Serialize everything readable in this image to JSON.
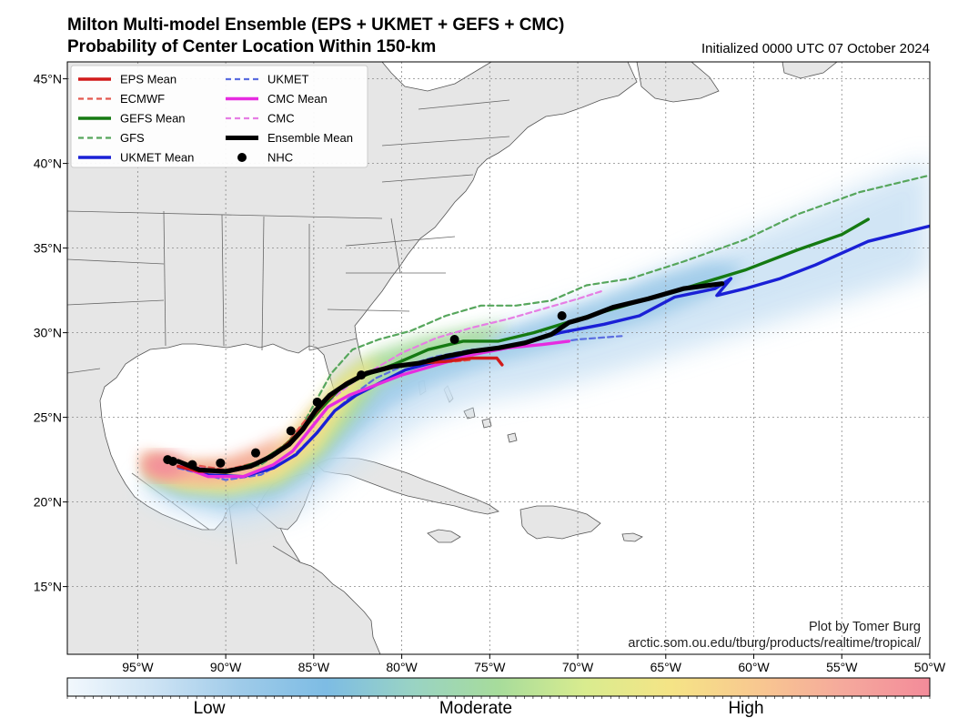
{
  "title": {
    "line1": "Milton Multi-model Ensemble (EPS + UKMET + GEFS + CMC)",
    "line2": "Probability of Center Location Within 150-km",
    "initialized": "Initialized 0000 UTC 07 October 2024"
  },
  "credit": {
    "line1": "Plot by Tomer Burg",
    "line2": "arctic.som.ou.edu/tburg/products/realtime/tropical/"
  },
  "axes": {
    "lat_labels": [
      "15°N",
      "20°N",
      "25°N",
      "30°N",
      "35°N",
      "40°N",
      "45°N"
    ],
    "lon_labels": [
      "95°W",
      "90°W",
      "85°W",
      "80°W",
      "75°W",
      "70°W",
      "65°W",
      "60°W",
      "55°W",
      "50°W"
    ],
    "lat_values": [
      15,
      20,
      25,
      30,
      35,
      40,
      45
    ],
    "lon_values": [
      -95,
      -90,
      -85,
      -80,
      -75,
      -70,
      -65,
      -60,
      -55,
      -50
    ],
    "lon_range": [
      -99,
      -50
    ],
    "lat_range": [
      11,
      46
    ]
  },
  "colorbar": {
    "labels": [
      "Low",
      "Moderate",
      "High"
    ],
    "colors": [
      "#f2f8fd",
      "#cde3f4",
      "#9fcbe9",
      "#7dbce4",
      "#99d3c4",
      "#a7dc9b",
      "#d9ec8f",
      "#f5e486",
      "#f8c890",
      "#f5a99c",
      "#f38b9a"
    ]
  },
  "legend": {
    "items": [
      {
        "label": "EPS Mean",
        "color": "#d11a1a",
        "style": "solid-thick"
      },
      {
        "label": "ECMWF",
        "color": "#e4584f",
        "style": "dashed"
      },
      {
        "label": "GEFS Mean",
        "color": "#157a12",
        "style": "solid-thick"
      },
      {
        "label": "GFS",
        "color": "#56a65c",
        "style": "dashed"
      },
      {
        "label": "UKMET Mean",
        "color": "#1a20d6",
        "style": "solid-thick"
      },
      {
        "label": "UKMET",
        "color": "#5a6de0",
        "style": "dashed"
      },
      {
        "label": "CMC Mean",
        "color": "#e62ce0",
        "style": "solid-thick"
      },
      {
        "label": "CMC",
        "color": "#e67ee4",
        "style": "dashed"
      },
      {
        "label": "Ensemble Mean",
        "color": "#000000",
        "style": "solid-heavy"
      },
      {
        "label": "NHC",
        "color": "#000000",
        "style": "dot"
      }
    ]
  },
  "tracks": {
    "eps_mean": [
      [
        -92.7,
        22.1
      ],
      [
        -91.5,
        21.8
      ],
      [
        -90,
        21.8
      ],
      [
        -88.5,
        22.1
      ],
      [
        -87.2,
        22.8
      ],
      [
        -86.2,
        23.7
      ],
      [
        -85.2,
        24.9
      ],
      [
        -84.3,
        26.0
      ],
      [
        -83.2,
        27.0
      ],
      [
        -82,
        27.6
      ],
      [
        -80.5,
        28.0
      ],
      [
        -79,
        28.2
      ],
      [
        -77.5,
        28.3
      ],
      [
        -76,
        28.5
      ],
      [
        -74.6,
        28.5
      ],
      [
        -74.3,
        28.1
      ]
    ],
    "gefs_mean": [
      [
        -92.7,
        22.1
      ],
      [
        -91,
        21.8
      ],
      [
        -89.5,
        21.9
      ],
      [
        -88,
        22.4
      ],
      [
        -86.8,
        23.2
      ],
      [
        -85.6,
        24.3
      ],
      [
        -84.6,
        25.5
      ],
      [
        -83.6,
        26.6
      ],
      [
        -82.3,
        27.4
      ],
      [
        -80.5,
        28.1
      ],
      [
        -78.5,
        29.0
      ],
      [
        -76.5,
        29.5
      ],
      [
        -74.5,
        29.5
      ],
      [
        -72.5,
        30.0
      ],
      [
        -70,
        30.8
      ],
      [
        -67,
        31.7
      ],
      [
        -64,
        32.6
      ],
      [
        -60.5,
        33.7
      ],
      [
        -57.5,
        34.9
      ],
      [
        -55,
        35.8
      ],
      [
        -53.5,
        36.7
      ]
    ],
    "ukmet_mean": [
      [
        -92.7,
        22.1
      ],
      [
        -91,
        21.6
      ],
      [
        -89,
        21.5
      ],
      [
        -87.3,
        22.0
      ],
      [
        -86,
        22.8
      ],
      [
        -84.8,
        24.1
      ],
      [
        -83.8,
        25.4
      ],
      [
        -82.6,
        26.3
      ],
      [
        -81.3,
        27.0
      ],
      [
        -79.8,
        27.8
      ],
      [
        -78,
        28.3
      ],
      [
        -76,
        28.8
      ],
      [
        -73.5,
        29.3
      ],
      [
        -71,
        30.0
      ],
      [
        -68.5,
        30.5
      ],
      [
        -66.5,
        31.0
      ],
      [
        -64.5,
        32.1
      ],
      [
        -62.2,
        32.6
      ],
      [
        -61.3,
        33.2
      ],
      [
        -62.1,
        32.2
      ],
      [
        -60.5,
        32.6
      ],
      [
        -58.5,
        33.2
      ],
      [
        -56.5,
        34.0
      ],
      [
        -53.5,
        35.4
      ],
      [
        -50,
        36.3
      ]
    ],
    "cmc_mean": [
      [
        -92.5,
        22.1
      ],
      [
        -91,
        21.5
      ],
      [
        -89,
        21.5
      ],
      [
        -87.3,
        22.2
      ],
      [
        -86.2,
        23.0
      ],
      [
        -85.2,
        24.3
      ],
      [
        -84.2,
        25.6
      ],
      [
        -83,
        26.3
      ],
      [
        -81.5,
        26.9
      ],
      [
        -80,
        27.5
      ],
      [
        -78,
        28.1
      ],
      [
        -76,
        28.7
      ],
      [
        -74,
        29.1
      ],
      [
        -72,
        29.3
      ],
      [
        -70.5,
        29.5
      ]
    ],
    "ens_mean": [
      [
        -92.7,
        22.4
      ],
      [
        -91.5,
        21.9
      ],
      [
        -90,
        21.8
      ],
      [
        -88.6,
        22.1
      ],
      [
        -87.4,
        22.7
      ],
      [
        -86.4,
        23.4
      ],
      [
        -85.6,
        24.3
      ],
      [
        -84.9,
        25.4
      ],
      [
        -84.1,
        26.3
      ],
      [
        -83.1,
        27.0
      ],
      [
        -82,
        27.6
      ],
      [
        -80.5,
        28.0
      ],
      [
        -79,
        28.2
      ],
      [
        -77.5,
        28.6
      ],
      [
        -76,
        28.9
      ],
      [
        -74.5,
        29.1
      ],
      [
        -73,
        29.4
      ],
      [
        -71.5,
        29.9
      ],
      [
        -70.5,
        30.6
      ],
      [
        -69.5,
        30.9
      ],
      [
        -68,
        31.5
      ],
      [
        -66,
        32.0
      ],
      [
        -64,
        32.6
      ],
      [
        -61.8,
        32.9
      ]
    ],
    "ecmwf": [
      [
        -92.5,
        22.3
      ],
      [
        -90,
        21.9
      ],
      [
        -88,
        22.4
      ],
      [
        -86.5,
        23.5
      ],
      [
        -85.5,
        24.8
      ],
      [
        -84.5,
        25.8
      ],
      [
        -83.3,
        26.9
      ],
      [
        -82,
        27.6
      ],
      [
        -80,
        28.1
      ],
      [
        -78,
        28.2
      ],
      [
        -76,
        28.4
      ]
    ],
    "gfs": [
      [
        -92.5,
        22.1
      ],
      [
        -90,
        21.7
      ],
      [
        -88,
        22.2
      ],
      [
        -86.6,
        23.2
      ],
      [
        -85.6,
        24.6
      ],
      [
        -84.8,
        26.1
      ],
      [
        -84.0,
        27.6
      ],
      [
        -82.8,
        29.0
      ],
      [
        -81.3,
        29.6
      ],
      [
        -79.5,
        30.1
      ],
      [
        -77.5,
        31.0
      ],
      [
        -75.5,
        31.6
      ],
      [
        -73.5,
        31.6
      ],
      [
        -71.5,
        31.9
      ],
      [
        -69.5,
        32.8
      ],
      [
        -67,
        33.2
      ],
      [
        -64,
        34.2
      ],
      [
        -60.5,
        35.5
      ],
      [
        -57.5,
        37.0
      ],
      [
        -54,
        38.3
      ],
      [
        -50,
        39.3
      ]
    ],
    "ukmet": [
      [
        -92.7,
        22.0
      ],
      [
        -90,
        21.3
      ],
      [
        -88,
        21.6
      ],
      [
        -86.3,
        22.6
      ],
      [
        -85,
        23.9
      ],
      [
        -83.9,
        25.3
      ],
      [
        -82.8,
        26.3
      ],
      [
        -81.5,
        27.3
      ],
      [
        -80,
        28.0
      ],
      [
        -78,
        28.6
      ],
      [
        -76,
        29.0
      ],
      [
        -74,
        29.1
      ],
      [
        -72,
        29.3
      ],
      [
        -70,
        29.6
      ],
      [
        -67.5,
        29.8
      ]
    ],
    "cmc": [
      [
        -92.5,
        22.2
      ],
      [
        -90,
        21.8
      ],
      [
        -88,
        22.3
      ],
      [
        -86.6,
        23.3
      ],
      [
        -85.5,
        24.5
      ],
      [
        -84.3,
        25.8
      ],
      [
        -83,
        26.9
      ],
      [
        -81.8,
        27.7
      ],
      [
        -80,
        28.8
      ],
      [
        -78,
        29.7
      ],
      [
        -76,
        30.3
      ],
      [
        -74,
        30.8
      ],
      [
        -72,
        31.4
      ],
      [
        -70,
        32.0
      ],
      [
        -68.5,
        32.5
      ]
    ],
    "nhc": [
      [
        -93.3,
        22.5
      ],
      [
        -93.0,
        22.4
      ],
      [
        -91.9,
        22.2
      ],
      [
        -90.3,
        22.3
      ],
      [
        -88.3,
        22.9
      ],
      [
        -86.3,
        24.2
      ],
      [
        -84.8,
        25.9
      ],
      [
        -82.3,
        27.5
      ],
      [
        -77.0,
        29.6
      ],
      [
        -70.9,
        31.0
      ]
    ]
  }
}
